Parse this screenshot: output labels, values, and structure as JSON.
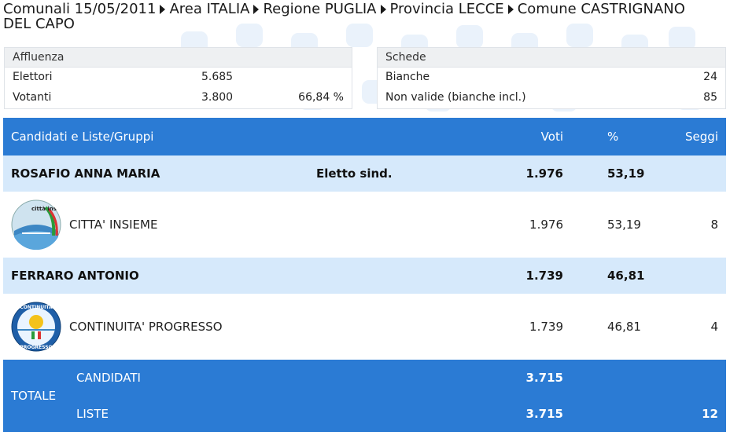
{
  "breadcrumb": {
    "election": "Comunali 15/05/2011",
    "area": "Area ITALIA",
    "region": "Regione PUGLIA",
    "province": "Provincia LECCE",
    "municipality": "Comune CASTRIGNANO DEL CAPO"
  },
  "affluenza": {
    "title": "Affluenza",
    "elettori_label": "Elettori",
    "elettori_value": "5.685",
    "votanti_label": "Votanti",
    "votanti_value": "3.800",
    "votanti_percent": "66,84 %"
  },
  "schede": {
    "title": "Schede",
    "bianche_label": "Bianche",
    "bianche_value": "24",
    "non_valide_label": "Non valide (bianche incl.)",
    "non_valide_value": "85"
  },
  "table": {
    "header": {
      "name": "Candidati e Liste/Gruppi",
      "voti": "Voti",
      "perc": "%",
      "seggi": "Seggi"
    },
    "candidates": [
      {
        "name": "ROSAFIO ANNA MARIA",
        "status": "Eletto sind.",
        "voti": "1.976",
        "perc": "53,19",
        "list": {
          "name": "CITTA' INSIEME",
          "logo_text": "città insieme",
          "voti": "1.976",
          "perc": "53,19",
          "seggi": "8"
        }
      },
      {
        "name": "FERRARO ANTONIO",
        "status": "",
        "voti": "1.739",
        "perc": "46,81",
        "list": {
          "name": "CONTINUITA' PROGRESSO",
          "logo_text_top": "CONTINUITÀ",
          "logo_text_bottom": "PROGRESSO",
          "voti": "1.739",
          "perc": "46,81",
          "seggi": "4"
        }
      }
    ],
    "footer": {
      "totale": "TOTALE",
      "candidati_label": "CANDIDATI",
      "candidati_voti": "3.715",
      "liste_label": "LISTE",
      "liste_voti": "3.715",
      "liste_seggi": "12"
    }
  },
  "colors": {
    "header_blue": "#2b7bd4",
    "candidate_row": "#d6e9fb"
  }
}
